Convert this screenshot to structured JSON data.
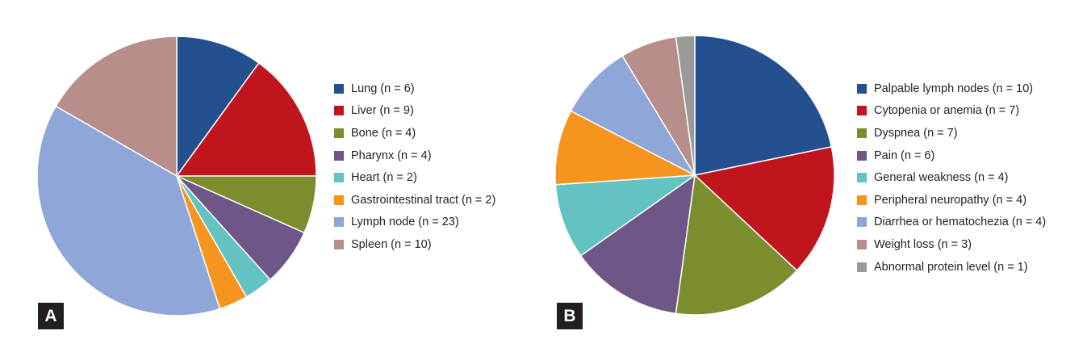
{
  "chart_data": [
    {
      "type": "pie",
      "panel_label": "A",
      "slices": [
        {
          "label": "Lung (n = 6)",
          "value": 6,
          "color": "#23508f"
        },
        {
          "label": "Liver (n = 9)",
          "value": 9,
          "color": "#c1151d"
        },
        {
          "label": "Bone (n = 4)",
          "value": 4,
          "color": "#7a8e2e"
        },
        {
          "label": "Pharynx (n = 4)",
          "value": 4,
          "color": "#6e5686"
        },
        {
          "label": "Heart (n = 2)",
          "value": 2,
          "color": "#62c3c2"
        },
        {
          "label": "Gastrointestinal tract (n = 2)",
          "value": 2,
          "color": "#f5951d"
        },
        {
          "label": "Lymph node (n = 23)",
          "value": 23,
          "color": "#8ea6d8"
        },
        {
          "label": "Spleen (n = 10)",
          "value": 10,
          "color": "#b88e8b"
        }
      ],
      "start": "top",
      "direction": "clockwise",
      "legend_position": "right"
    },
    {
      "type": "pie",
      "panel_label": "B",
      "slices": [
        {
          "label": "Palpable lymph nodes (n = 10)",
          "value": 10,
          "color": "#23508f"
        },
        {
          "label": "Cytopenia or anemia (n = 7)",
          "value": 7,
          "color": "#c1151d"
        },
        {
          "label": "Dyspnea (n = 7)",
          "value": 7,
          "color": "#7a8e2e"
        },
        {
          "label": "Pain (n = 6)",
          "value": 6,
          "color": "#6e5686"
        },
        {
          "label": "General weakness (n = 4)",
          "value": 4,
          "color": "#62c3c2"
        },
        {
          "label": "Peripheral neuropathy (n = 4)",
          "value": 4,
          "color": "#f5951d"
        },
        {
          "label": "Diarrhea or hematochezia (n = 4)",
          "value": 4,
          "color": "#8ea6d8"
        },
        {
          "label": "Weight loss (n = 3)",
          "value": 3,
          "color": "#b88e8b"
        },
        {
          "label": "Abnormal protein level (n = 1)",
          "value": 1,
          "color": "#9a9a9a"
        }
      ],
      "start": "top",
      "direction": "clockwise",
      "legend_position": "right"
    }
  ]
}
